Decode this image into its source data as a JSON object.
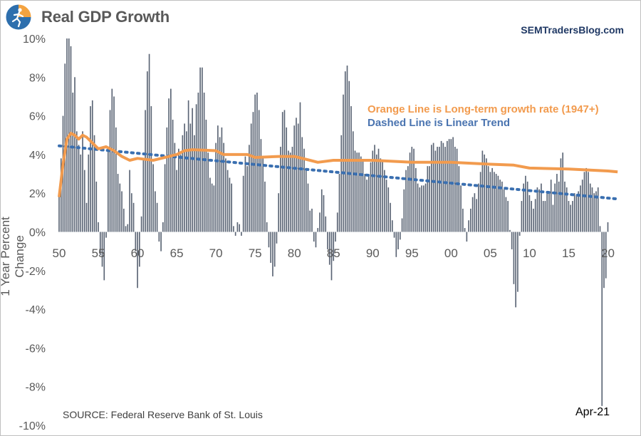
{
  "header": {
    "title": "Real GDP Growth",
    "site": "SEMTradersBlog.com",
    "logo_icon": "runner-globe-logo-icon"
  },
  "footer": {
    "source": "SOURCE:  Federal Reserve Bank of St. Louis",
    "last_label": "Apr-21"
  },
  "colors": {
    "bars": "#5a6474",
    "orange_line": "#f29b4e",
    "trend_dots": "#3a6fb0",
    "title": "#595959",
    "site": "#1f3864"
  },
  "chart_data": {
    "type": "bar",
    "title": "Real GDP Growth",
    "xlabel": "",
    "ylabel": "1 Year Percent Change",
    "ylim": [
      -10,
      10
    ],
    "yticks": [
      10,
      8,
      6,
      4,
      2,
      0,
      -2,
      -4,
      -6,
      -8,
      -10
    ],
    "ytick_labels": [
      "10%",
      "8%",
      "6%",
      "4%",
      "2%",
      "0%",
      "-2%",
      "-4%",
      "-6%",
      "-8%",
      "-10%"
    ],
    "xlim": [
      1950,
      2021.5
    ],
    "xticks": [
      1950,
      1955,
      1960,
      1965,
      1970,
      1975,
      1980,
      1985,
      1990,
      1995,
      2000,
      2005,
      2010,
      2015,
      2020
    ],
    "xtick_labels": [
      "50",
      "55",
      "60",
      "65",
      "70",
      "75",
      "80",
      "85",
      "90",
      "95",
      "00",
      "05",
      "10",
      "15",
      "20"
    ],
    "grid": false,
    "legend": [
      {
        "text": "Orange Line is Long-term growth rate (1947+)",
        "color": "#f29b4e",
        "placement": "upper-right"
      },
      {
        "text": "Dashed Line is Linear Trend",
        "color": "#3a6fb0",
        "placement": "upper-right"
      }
    ],
    "annotation": {
      "text": "Apr-21",
      "x": 2021.25
    },
    "series": [
      {
        "name": "Real GDP YoY % change (quarterly)",
        "type": "bar",
        "start": 1950.0,
        "step": 0.25,
        "values": [
          2.0,
          3.8,
          6.0,
          8.7,
          10.0,
          10.0,
          9.6,
          7.2,
          8.0,
          5.2,
          4.5,
          4.0,
          5.2,
          3.2,
          1.5,
          4.0,
          6.5,
          6.8,
          5.0,
          2.6,
          0.5,
          -1.2,
          -1.8,
          -2.5,
          -0.3,
          4.2,
          6.3,
          7.4,
          7.0,
          5.4,
          3.0,
          2.5,
          2.1,
          1.2,
          0.3,
          0.4,
          3.2,
          2.0,
          1.5,
          -1.0,
          -2.9,
          -1.8,
          0.8,
          3.8,
          6.3,
          8.3,
          9.2,
          6.5,
          3.5,
          2.1,
          1.5,
          -0.5,
          -1.0,
          0.5,
          3.5,
          5.4,
          6.9,
          7.4,
          5.8,
          4.6,
          3.2,
          4.3,
          4.0,
          5.0,
          5.6,
          5.2,
          6.8,
          5.6,
          6.4,
          5.0,
          6.6,
          7.2,
          8.5,
          8.5,
          7.2,
          5.8,
          4.1,
          2.8,
          2.5,
          2.4,
          4.6,
          5.5,
          4.9,
          5.4,
          4.6,
          3.8,
          3.2,
          2.8,
          2.5,
          0.3,
          -0.2,
          0.5,
          0.4,
          -0.2,
          2.9,
          3.9,
          3.4,
          4.5,
          5.6,
          6.2,
          7.1,
          7.2,
          6.3,
          4.8,
          3.8,
          2.6,
          0.5,
          -0.8,
          -1.6,
          -2.3,
          -1.8,
          -0.6,
          2.0,
          4.4,
          6.2,
          6.3,
          5.4,
          4.2,
          4.1,
          4.4,
          5.5,
          5.9,
          5.6,
          6.7,
          4.9,
          4.3,
          3.2,
          2.5,
          1.1,
          1.2,
          -0.5,
          -0.8,
          0.2,
          1.0,
          2.2,
          1.9,
          0.8,
          -0.9,
          -1.7,
          -2.5,
          -1.5,
          -0.5,
          1.0,
          3.0,
          5.0,
          7.1,
          8.3,
          8.6,
          7.8,
          6.5,
          5.2,
          4.2,
          4.1,
          4.1,
          3.9,
          3.7,
          3.0,
          2.7,
          2.9,
          3.6,
          4.2,
          4.5,
          4.0,
          4.3,
          3.8,
          3.7,
          3.2,
          2.7,
          2.3,
          1.5,
          0.6,
          -0.3,
          -1.3,
          -0.9,
          -0.4,
          0.7,
          2.2,
          3.2,
          3.4,
          4.1,
          4.4,
          4.3,
          3.3,
          2.5,
          2.3,
          2.4,
          2.4,
          2.5,
          3.4,
          3.4,
          4.5,
          4.6,
          4.2,
          4.4,
          4.4,
          4.7,
          4.6,
          4.4,
          4.7,
          4.8,
          4.8,
          4.9,
          4.4,
          4.3,
          3.4,
          2.4,
          1.2,
          0.2,
          -0.5,
          0.6,
          1.2,
          1.8,
          2.0,
          1.7,
          2.5,
          3.1,
          4.2,
          4.0,
          3.8,
          3.4,
          3.1,
          3.3,
          3.1,
          3.0,
          2.9,
          2.7,
          2.6,
          2.2,
          1.8,
          1.6,
          0.1,
          -0.9,
          -2.7,
          -3.9,
          -3.1,
          -0.2,
          1.6,
          2.5,
          2.9,
          2.6,
          1.9,
          1.6,
          1.2,
          1.7,
          2.3,
          2.2,
          2.5,
          1.6,
          1.6,
          2.1,
          2.0,
          2.7,
          1.4,
          2.5,
          3.0,
          2.6,
          3.8,
          4.1,
          2.6,
          2.3,
          1.6,
          1.4,
          1.6,
          2.0,
          1.9,
          2.1,
          2.4,
          2.7,
          3.1,
          3.3,
          3.1,
          2.5,
          2.3,
          2.0,
          2.1,
          2.3,
          0.3,
          -9.0,
          -2.9,
          -2.4,
          0.5
        ]
      },
      {
        "name": "Long-term growth rate (1947+)",
        "type": "line",
        "color": "#f29b4e",
        "x": [
          1950.0,
          1950.5,
          1951.0,
          1951.5,
          1952.0,
          1952.5,
          1953.0,
          1953.5,
          1954.0,
          1955.0,
          1956.0,
          1957.0,
          1958.0,
          1959.0,
          1960.0,
          1962.0,
          1963.0,
          1965.0,
          1966.0,
          1967.0,
          1970.0,
          1971.0,
          1973.0,
          1974.0,
          1975.0,
          1978.0,
          1980.0,
          1982.0,
          1983.0,
          1985.0,
          1990.0,
          1995.0,
          2000.0,
          2005.0,
          2008.0,
          2010.0,
          2015.0,
          2020.0,
          2021.25
        ],
        "y": [
          1.8,
          3.5,
          4.8,
          5.1,
          5.0,
          4.8,
          5.0,
          4.9,
          4.7,
          4.3,
          4.4,
          4.2,
          3.9,
          3.7,
          3.8,
          3.7,
          3.8,
          4.0,
          4.2,
          4.25,
          4.2,
          4.0,
          4.0,
          4.0,
          3.85,
          3.9,
          3.9,
          3.7,
          3.6,
          3.7,
          3.7,
          3.6,
          3.6,
          3.5,
          3.45,
          3.3,
          3.25,
          3.15,
          3.1
        ]
      },
      {
        "name": "Linear Trend",
        "type": "dotted-line",
        "color": "#3a6fb0",
        "x": [
          1950.0,
          2021.25
        ],
        "y": [
          4.45,
          1.7
        ]
      }
    ]
  }
}
